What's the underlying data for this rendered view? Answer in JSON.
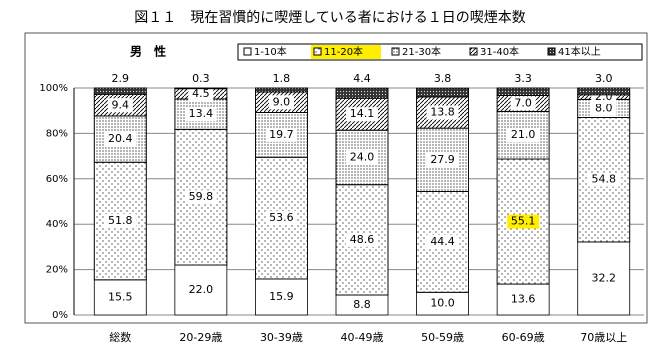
{
  "chart_data": {
    "type": "stacked-bar",
    "title": "図１１　現在習慣的に喫煙している者における１日の喫煙本数",
    "subtitle": "男　性",
    "categories": [
      "総数",
      "20-29歳",
      "30-39歳",
      "40-49歳",
      "50-59歳",
      "60-69歳",
      "70歳以上"
    ],
    "series": [
      {
        "name": "1-10本",
        "color": "#ffffff",
        "values": [
          15.5,
          22.0,
          15.9,
          8.8,
          10.0,
          13.6,
          32.2
        ],
        "value_labels": [
          "15.5",
          "22.0",
          "15.9",
          "8.8",
          "10.0",
          "13.6",
          "32.2"
        ]
      },
      {
        "name": "11-20本",
        "color": "#ffffff",
        "values": [
          51.8,
          59.8,
          53.6,
          48.6,
          44.4,
          55.1,
          54.8
        ],
        "value_labels": [
          "51.8",
          "59.8",
          "53.6",
          "48.6",
          "44.4",
          "55.1",
          "54.8"
        ]
      },
      {
        "name": "21-30本",
        "color": "#ffffff",
        "values": [
          20.4,
          13.4,
          19.7,
          24.0,
          27.9,
          21.0,
          8.0
        ],
        "value_labels": [
          "20.4",
          "13.4",
          "19.7",
          "24.0",
          "27.9",
          "21.0",
          "8.0"
        ]
      },
      {
        "name": "31-40本",
        "color": "#ffffff",
        "values": [
          9.4,
          4.5,
          9.0,
          14.1,
          13.8,
          7.0,
          2.0
        ],
        "value_labels": [
          "9.4",
          "4.5",
          "9.0",
          "14.1",
          "13.8",
          "7.0",
          "2.0"
        ]
      },
      {
        "name": "41本以上",
        "color": "#666666",
        "values": [
          2.9,
          0.3,
          1.8,
          4.4,
          3.8,
          3.3,
          3.0
        ],
        "value_labels": [
          "2.9",
          "0.3",
          "1.8",
          "4.4",
          "3.8",
          "3.3",
          "3.0"
        ]
      }
    ],
    "ylim": [
      0,
      100
    ],
    "yticks": [
      {
        "value": 0,
        "label": "0%"
      },
      {
        "value": 20,
        "label": "20%"
      },
      {
        "value": 40,
        "label": "40%"
      },
      {
        "value": 60,
        "label": "60%"
      },
      {
        "value": 80,
        "label": "80%"
      },
      {
        "value": 100,
        "label": "100%"
      }
    ],
    "grid": true
  }
}
